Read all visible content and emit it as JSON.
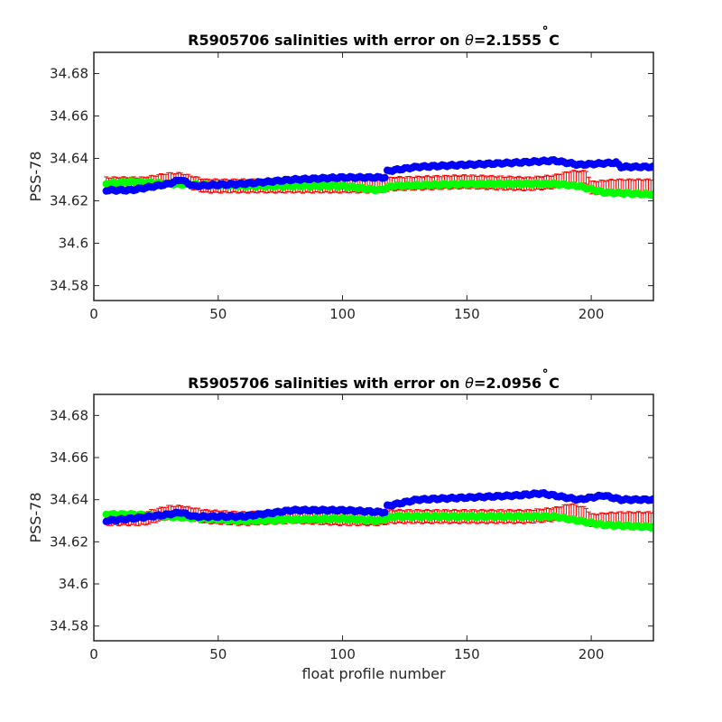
{
  "chart_data": [
    {
      "type": "scatter",
      "title_prefix": "R5905706 salinities with error on ",
      "title_symbol": "θ",
      "title_value": "=2.1555",
      "title_degree": "˚",
      "title_unit": "C",
      "xlabel": "",
      "ylabel": "PSS-78",
      "xlim": [
        0,
        225
      ],
      "ylim": [
        34.573,
        34.69
      ],
      "xticks": [
        "0",
        "50",
        "100",
        "150",
        "200"
      ],
      "xtick_values": [
        0,
        50,
        100,
        150,
        200
      ],
      "yticks": [
        "34.58",
        "34.6",
        "34.62",
        "34.64",
        "34.66",
        "34.68"
      ],
      "ytick_values": [
        34.58,
        34.6,
        34.62,
        34.64,
        34.66,
        34.68
      ],
      "error_halfwidth": 0.003,
      "series": [
        {
          "color": "#ff0000",
          "kind": "errorbar",
          "profiles": [
            [
              5,
              34.628
            ],
            [
              20,
              34.628
            ],
            [
              30,
              34.63
            ],
            [
              35,
              34.63
            ],
            [
              45,
              34.627
            ],
            [
              60,
              34.627
            ],
            [
              80,
              34.627
            ],
            [
              100,
              34.627
            ],
            [
              115,
              34.627
            ],
            [
              120,
              34.628
            ],
            [
              150,
              34.629
            ],
            [
              175,
              34.628
            ],
            [
              185,
              34.629
            ],
            [
              192,
              34.631
            ],
            [
              198,
              34.631
            ],
            [
              200,
              34.626
            ],
            [
              210,
              34.627
            ],
            [
              225,
              34.627
            ]
          ]
        },
        {
          "color": "#00ff00",
          "kind": "points",
          "profiles": [
            [
              5,
              34.628
            ],
            [
              15,
              34.629
            ],
            [
              30,
              34.628
            ],
            [
              60,
              34.627
            ],
            [
              100,
              34.627
            ],
            [
              115,
              34.625
            ],
            [
              120,
              34.627
            ],
            [
              150,
              34.628
            ],
            [
              185,
              34.628
            ],
            [
              195,
              34.627
            ],
            [
              205,
              34.624
            ],
            [
              225,
              34.623
            ]
          ]
        },
        {
          "color": "#0000ff",
          "kind": "points",
          "profiles": [
            [
              5,
              34.625
            ],
            [
              15,
              34.625
            ],
            [
              30,
              34.628
            ],
            [
              35,
              34.63
            ],
            [
              40,
              34.627
            ],
            [
              60,
              34.628
            ],
            [
              80,
              34.63
            ],
            [
              100,
              34.631
            ],
            [
              117,
              34.631
            ],
            [
              118,
              34.634
            ],
            [
              130,
              34.636
            ],
            [
              150,
              34.637
            ],
            [
              170,
              34.638
            ],
            [
              185,
              34.639
            ],
            [
              195,
              34.637
            ],
            [
              210,
              34.638
            ],
            [
              212,
              34.636
            ],
            [
              225,
              34.636
            ]
          ]
        }
      ]
    },
    {
      "type": "scatter",
      "title_prefix": "R5905706 salinities with error on ",
      "title_symbol": "θ",
      "title_value": "=2.0956",
      "title_degree": "˚",
      "title_unit": "C",
      "xlabel": "float profile number",
      "ylabel": "PSS-78",
      "xlim": [
        0,
        225
      ],
      "ylim": [
        34.573,
        34.69
      ],
      "xticks": [
        "0",
        "50",
        "100",
        "150",
        "200"
      ],
      "xtick_values": [
        0,
        50,
        100,
        150,
        200
      ],
      "yticks": [
        "34.58",
        "34.6",
        "34.62",
        "34.64",
        "34.66",
        "34.68"
      ],
      "ytick_values": [
        34.58,
        34.6,
        34.62,
        34.64,
        34.66,
        34.68
      ],
      "error_halfwidth": 0.003,
      "series": [
        {
          "color": "#ff0000",
          "kind": "errorbar",
          "profiles": [
            [
              5,
              34.631
            ],
            [
              20,
              34.631
            ],
            [
              30,
              34.634
            ],
            [
              35,
              34.634
            ],
            [
              45,
              34.632
            ],
            [
              60,
              34.631
            ],
            [
              80,
              34.632
            ],
            [
              100,
              34.631
            ],
            [
              115,
              34.631
            ],
            [
              120,
              34.632
            ],
            [
              150,
              34.632
            ],
            [
              175,
              34.632
            ],
            [
              185,
              34.633
            ],
            [
              192,
              34.635
            ],
            [
              198,
              34.633
            ],
            [
              200,
              34.63
            ],
            [
              210,
              34.631
            ],
            [
              225,
              34.631
            ]
          ]
        },
        {
          "color": "#00ff00",
          "kind": "points",
          "profiles": [
            [
              5,
              34.633
            ],
            [
              15,
              34.633
            ],
            [
              30,
              34.632
            ],
            [
              60,
              34.63
            ],
            [
              100,
              34.631
            ],
            [
              115,
              34.63
            ],
            [
              120,
              34.632
            ],
            [
              150,
              34.632
            ],
            [
              185,
              34.632
            ],
            [
              195,
              34.63
            ],
            [
              205,
              34.628
            ],
            [
              225,
              34.627
            ]
          ]
        },
        {
          "color": "#0000ff",
          "kind": "points",
          "profiles": [
            [
              5,
              34.63
            ],
            [
              15,
              34.631
            ],
            [
              30,
              34.633
            ],
            [
              35,
              34.634
            ],
            [
              40,
              34.632
            ],
            [
              60,
              34.632
            ],
            [
              80,
              34.635
            ],
            [
              100,
              34.635
            ],
            [
              117,
              34.634
            ],
            [
              118,
              34.637
            ],
            [
              130,
              34.64
            ],
            [
              150,
              34.641
            ],
            [
              170,
              34.642
            ],
            [
              180,
              34.643
            ],
            [
              195,
              34.64
            ],
            [
              205,
              34.642
            ],
            [
              212,
              34.64
            ],
            [
              225,
              34.64
            ]
          ]
        }
      ]
    }
  ]
}
